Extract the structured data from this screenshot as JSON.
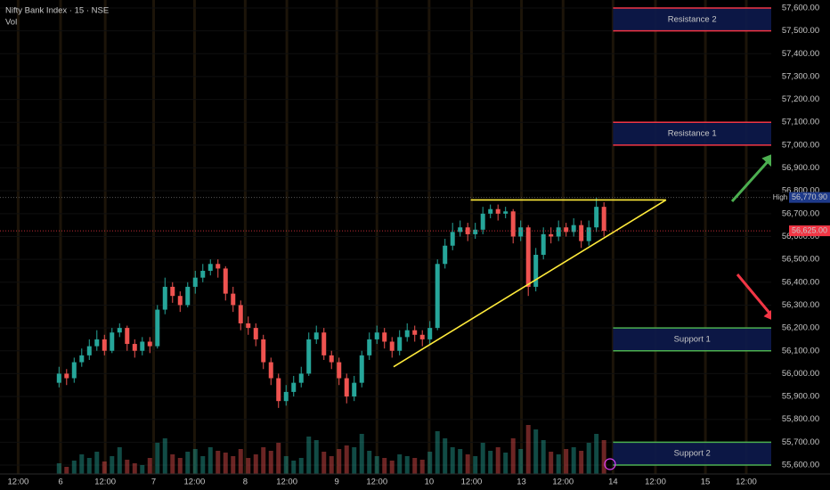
{
  "chart_data": {
    "type": "candlestick",
    "title": "Nifty Bank Index · 15 · NSE",
    "volume_label": "Vol",
    "up_color": "#26a69a",
    "down_color": "#ef5350",
    "grid": true,
    "xlim": [
      -7.8,
      94.1
    ],
    "xticks": [
      {
        "value": -5.4,
        "label": "12:00"
      },
      {
        "value": 0.2,
        "label": "6"
      },
      {
        "value": 6.1,
        "label": "12:00"
      },
      {
        "value": 12.5,
        "label": "7"
      },
      {
        "value": 17.9,
        "label": "12:00"
      },
      {
        "value": 24.6,
        "label": "8"
      },
      {
        "value": 30.1,
        "label": "12:00"
      },
      {
        "value": 36.7,
        "label": "9"
      },
      {
        "value": 42.0,
        "label": "12:00"
      },
      {
        "value": 48.9,
        "label": "10"
      },
      {
        "value": 54.5,
        "label": "12:00"
      },
      {
        "value": 61.1,
        "label": "13"
      },
      {
        "value": 66.6,
        "label": "12:00"
      },
      {
        "value": 73.2,
        "label": "14"
      },
      {
        "value": 78.8,
        "label": "12:00"
      },
      {
        "value": 85.4,
        "label": "15"
      },
      {
        "value": 90.8,
        "label": "12:00"
      }
    ],
    "ylim": [
      55561,
      57635
    ],
    "yticks": [
      {
        "value": 55600,
        "label": "55,600.00"
      },
      {
        "value": 55700,
        "label": "55,700.00"
      },
      {
        "value": 55800,
        "label": "55,800.00"
      },
      {
        "value": 55900,
        "label": "55,900.00"
      },
      {
        "value": 56000,
        "label": "56,000.00"
      },
      {
        "value": 56100,
        "label": "56,100.00"
      },
      {
        "value": 56200,
        "label": "56,200.00"
      },
      {
        "value": 56300,
        "label": "56,300.00"
      },
      {
        "value": 56400,
        "label": "56,400.00"
      },
      {
        "value": 56500,
        "label": "56,500.00"
      },
      {
        "value": 56600,
        "label": "56,600.00"
      },
      {
        "value": 56700,
        "label": "56,700.00"
      },
      {
        "value": 56800,
        "label": "56,800.00"
      },
      {
        "value": 56900,
        "label": "56,900.00"
      },
      {
        "value": 57000,
        "label": "57,000.00"
      },
      {
        "value": 57100,
        "label": "57,100.00"
      },
      {
        "value": 57200,
        "label": "57,200.00"
      },
      {
        "value": 57300,
        "label": "57,300.00"
      },
      {
        "value": 57400,
        "label": "57,400.00"
      },
      {
        "value": 57500,
        "label": "57,500.00"
      },
      {
        "value": 57600,
        "label": "57,600.00"
      }
    ],
    "open": [
      55960,
      56000,
      55980,
      56050,
      56080,
      56120,
      56150,
      56100,
      56180,
      56200,
      56130,
      56100,
      56140,
      56120,
      56280,
      56380,
      56340,
      56300,
      56380,
      56420,
      56450,
      56480,
      56460,
      56350,
      56300,
      56220,
      56200,
      56150,
      56050,
      55980,
      55880,
      55920,
      55960,
      56000,
      56150,
      56180,
      56080,
      56050,
      55980,
      55900,
      55960,
      56080,
      56150,
      56180,
      56140,
      56100,
      56160,
      56190,
      56170,
      56150,
      56200,
      56480,
      56560,
      56620,
      56640,
      56610,
      56630,
      56700,
      56720,
      56700,
      56710,
      56600,
      56640,
      56380,
      56520,
      56610,
      56600,
      56640,
      56620,
      56650,
      56580,
      56640,
      56730
    ],
    "high": [
      56030,
      56020,
      56070,
      56110,
      56150,
      56190,
      56170,
      56200,
      56220,
      56210,
      56150,
      56160,
      56160,
      56300,
      56420,
      56400,
      56360,
      56400,
      56450,
      56480,
      56500,
      56500,
      56470,
      56380,
      56320,
      56250,
      56220,
      56170,
      56070,
      56000,
      55950,
      55990,
      56030,
      56180,
      56210,
      56200,
      56100,
      56070,
      56000,
      55990,
      56100,
      56180,
      56210,
      56200,
      56160,
      56190,
      56220,
      56210,
      56190,
      56230,
      56500,
      56590,
      56660,
      56670,
      56660,
      56660,
      56730,
      56740,
      56740,
      56730,
      56720,
      56670,
      56650,
      56550,
      56640,
      56640,
      56670,
      56660,
      56680,
      56670,
      56670,
      56770,
      56750
    ],
    "low": [
      55940,
      55950,
      55960,
      56030,
      56060,
      56100,
      56080,
      56090,
      56160,
      56100,
      56070,
      56080,
      56090,
      56110,
      56260,
      56310,
      56270,
      56290,
      56350,
      56400,
      56430,
      56420,
      56320,
      56270,
      56190,
      56170,
      56120,
      56020,
      55950,
      55850,
      55860,
      55900,
      55940,
      55990,
      56130,
      56060,
      56020,
      55950,
      55870,
      55880,
      55940,
      56060,
      56130,
      56110,
      56070,
      56080,
      56140,
      56140,
      56120,
      56130,
      56190,
      56460,
      56540,
      56600,
      56580,
      56590,
      56610,
      56680,
      56670,
      56680,
      56570,
      56580,
      56340,
      56360,
      56500,
      56570,
      56580,
      56600,
      56600,
      56550,
      56560,
      56620,
      56600
    ],
    "close": [
      56000,
      55980,
      56050,
      56080,
      56120,
      56150,
      56100,
      56180,
      56200,
      56130,
      56100,
      56140,
      56120,
      56280,
      56380,
      56340,
      56300,
      56380,
      56420,
      56450,
      56480,
      56460,
      56350,
      56300,
      56220,
      56200,
      56150,
      56050,
      55980,
      55880,
      55920,
      55960,
      56000,
      56150,
      56180,
      56080,
      56050,
      55980,
      55900,
      55960,
      56080,
      56150,
      56180,
      56140,
      56100,
      56160,
      56190,
      56170,
      56150,
      56200,
      56480,
      56560,
      56620,
      56640,
      56610,
      56630,
      56700,
      56720,
      56700,
      56710,
      56600,
      56640,
      56380,
      56520,
      56610,
      56600,
      56640,
      56620,
      56650,
      56580,
      56640,
      56730,
      56625
    ],
    "volume": [
      12,
      8,
      15,
      22,
      18,
      25,
      14,
      20,
      30,
      16,
      12,
      10,
      18,
      35,
      40,
      22,
      18,
      25,
      28,
      20,
      30,
      26,
      24,
      20,
      28,
      18,
      22,
      30,
      26,
      35,
      20,
      15,
      18,
      42,
      38,
      25,
      20,
      28,
      32,
      30,
      45,
      26,
      20,
      18,
      15,
      22,
      20,
      18,
      16,
      25,
      48,
      40,
      30,
      28,
      22,
      20,
      35,
      26,
      30,
      24,
      40,
      28,
      55,
      50,
      38,
      25,
      22,
      28,
      30,
      26,
      35,
      45,
      38
    ],
    "volume_lim": [
      0,
      100
    ],
    "zones": [
      {
        "label": "Resistance 2",
        "low": 57500,
        "high": 57600,
        "color": "#f23645"
      },
      {
        "label": "Resistance 1",
        "low": 57000,
        "high": 57100,
        "color": "#f23645"
      },
      {
        "label": "Support 1",
        "low": 56100,
        "high": 56200,
        "color": "#4caf50"
      },
      {
        "label": "Support 2",
        "low": 55600,
        "high": 55700,
        "color": "#4caf50"
      }
    ],
    "trend_lines": [
      {
        "x": [
          54.4,
          80.2
        ],
        "y": [
          56760,
          56760
        ],
        "color": "#ffeb3b"
      },
      {
        "x": [
          44.2,
          80.2
        ],
        "y": [
          56030,
          56760
        ],
        "color": "#ffeb3b"
      }
    ],
    "high_marker": {
      "name": "High",
      "value": 56770.9,
      "label": "56,770.90",
      "color": "#1e3a8a"
    },
    "last_price": {
      "value": 56625,
      "label": "56,625.00",
      "color": "#f23645"
    }
  }
}
